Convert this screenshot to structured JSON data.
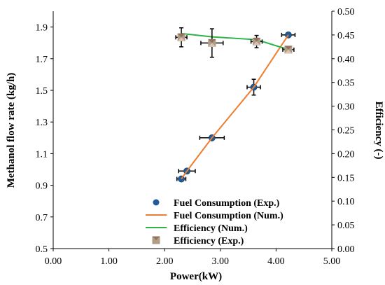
{
  "chart_data": {
    "type": "scatter",
    "xlabel": "Power(kW)",
    "ylabel": "Methanol flow rate (kg/h)",
    "y2label": "Efficiency (-)",
    "xlim": [
      0,
      5
    ],
    "ylim": [
      0.5,
      2.0
    ],
    "y2lim": [
      0,
      0.5
    ],
    "xticks": [
      "0.00",
      "1.00",
      "2.00",
      "3.00",
      "4.00",
      "5.00"
    ],
    "yticks": [
      "0.5",
      "0.7",
      "0.9",
      "1.1",
      "1.3",
      "1.5",
      "1.7",
      "1.9"
    ],
    "y2ticks": [
      "0.00",
      "0.05",
      "0.10",
      "0.15",
      "0.20",
      "0.25",
      "0.30",
      "0.35",
      "0.40",
      "0.45",
      "0.50"
    ],
    "grid": false,
    "legend_position": "bottom-center",
    "series": [
      {
        "name": "Fuel Consumption (Exp.)",
        "axis": "left",
        "kind": "marker",
        "marker": "circle",
        "color": "#1f5c99",
        "points": [
          {
            "x": 2.3,
            "y": 0.94,
            "xerr": 0.08,
            "yerr": 0
          },
          {
            "x": 2.4,
            "y": 0.99,
            "xerr": 0.15,
            "yerr": 0
          },
          {
            "x": 2.85,
            "y": 1.2,
            "xerr": 0.22,
            "yerr": 0
          },
          {
            "x": 3.6,
            "y": 1.52,
            "xerr": 0.12,
            "yerr": 0.05
          },
          {
            "x": 4.22,
            "y": 1.85,
            "xerr": 0.12,
            "yerr": 0
          }
        ]
      },
      {
        "name": "Fuel Consumption (Num.)",
        "axis": "left",
        "kind": "line",
        "color": "#ed7d31",
        "points": [
          {
            "x": 2.3,
            "y": 0.94
          },
          {
            "x": 2.4,
            "y": 0.99
          },
          {
            "x": 2.85,
            "y": 1.2
          },
          {
            "x": 3.6,
            "y": 1.52
          },
          {
            "x": 4.22,
            "y": 1.85
          }
        ]
      },
      {
        "name": "Efficiency (Num.)",
        "axis": "right",
        "kind": "line",
        "color": "#2db34a",
        "points": [
          {
            "x": 2.3,
            "y": 0.453
          },
          {
            "x": 2.85,
            "y": 0.446
          },
          {
            "x": 3.65,
            "y": 0.44
          },
          {
            "x": 4.2,
            "y": 0.42
          }
        ]
      },
      {
        "name": "Efficiency (Exp.)",
        "axis": "right",
        "kind": "marker",
        "marker": "square",
        "color": "#b39b85",
        "points": [
          {
            "x": 2.3,
            "y": 0.445,
            "xerr": 0.1,
            "yerr": 0.02
          },
          {
            "x": 2.85,
            "y": 0.433,
            "xerr": 0.2,
            "yerr": 0.03
          },
          {
            "x": 3.65,
            "y": 0.436,
            "xerr": 0.1,
            "yerr": 0.013
          },
          {
            "x": 4.22,
            "y": 0.419,
            "xerr": 0.1,
            "yerr": 0
          }
        ]
      }
    ]
  }
}
